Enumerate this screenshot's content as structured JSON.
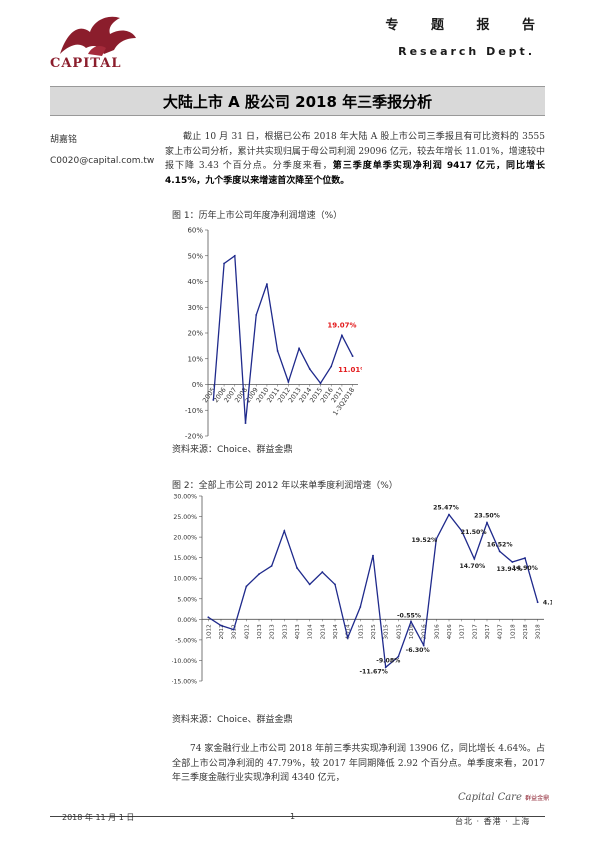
{
  "header": {
    "logo_text": "CAPITAL",
    "cn_label": "专 题 报 告",
    "en_label": "Research Dept."
  },
  "title": "大陆上市 A 股公司 2018 年三季报分析",
  "author": {
    "name": "胡嘉铭",
    "email": "C0020@capital.com.tw"
  },
  "intro": {
    "normal": "截止 10 月 31 日，根据已公布 2018 年大陆 A 股上市公司三季报且有可比资料的 3555 家上市公司分析，累计共实现归属于母公司利润 29096 亿元，较去年增长 11.01%，增速较中报下降 3.43 个百分点。分季度来看，",
    "bold": "第三季度单季实现净利润 9417 亿元，同比增长 4.15%，九个季度以来增速首次降至个位数。"
  },
  "figure1": {
    "title": "图 1：历年上市公司年度净利润增速（%）",
    "source": "资料来源：Choice、群益金鼎"
  },
  "figure2": {
    "title": "图 2：全部上市公司 2012 年以来单季度利润增速（%）",
    "source": "资料来源：Choice、群益金鼎"
  },
  "chart_data": [
    {
      "type": "line",
      "title": "",
      "xlabel": "",
      "ylabel": "",
      "categories": [
        "2005",
        "2006",
        "2007",
        "2008",
        "2009",
        "2010",
        "2011",
        "2012",
        "2013",
        "2014",
        "2015",
        "2016",
        "2017",
        "1-3Q2018"
      ],
      "values": [
        -6,
        47,
        50,
        -15,
        27,
        39,
        13,
        1,
        14,
        6,
        0.5,
        7,
        19.07,
        11.01
      ],
      "ylim": [
        -20,
        60
      ],
      "yticks": [
        "-20%",
        "-10%",
        "0%",
        "10%",
        "20%",
        "30%",
        "40%",
        "50%",
        "60%"
      ],
      "labels": [
        {
          "index": 12,
          "text": "19.07%"
        },
        {
          "index": 13,
          "text": "11.01%"
        }
      ],
      "line_color": "#1f2a8c",
      "label_color": "#e31a1c",
      "grid": false
    },
    {
      "type": "line",
      "title": "",
      "xlabel": "",
      "ylabel": "",
      "categories": [
        "1Q12",
        "2Q12",
        "3Q12",
        "4Q12",
        "1Q13",
        "2Q13",
        "3Q13",
        "4Q13",
        "1Q14",
        "2Q14",
        "3Q14",
        "4Q14",
        "1Q15",
        "2Q15",
        "3Q15",
        "4Q15",
        "1Q16",
        "2Q16",
        "3Q16",
        "4Q16",
        "1Q17",
        "2Q17",
        "3Q17",
        "4Q17",
        "1Q18",
        "2Q18",
        "3Q18"
      ],
      "tick_labels": [
        "1Q12",
        "2Q12",
        "3Q12",
        "4Q12",
        "1Q13",
        "2Q13",
        "3Q13",
        "4Q13",
        "1Q14",
        "2Q14",
        "3Q14",
        "4Q14",
        "1Q15",
        "2Q15",
        "3Q15",
        "4Q15",
        "1Q16",
        "2Q16",
        "3Q16",
        "4Q16",
        "1Q17",
        "2Q17",
        "3Q17",
        "4Q17",
        "1Q18",
        "2Q18",
        "3Q18"
      ],
      "values": [
        0.5,
        -1.5,
        -2.5,
        8,
        11,
        13,
        21.5,
        12.5,
        8.5,
        11.5,
        8.5,
        -4.5,
        3,
        15.5,
        -11.67,
        -9.08,
        -0.55,
        -6.3,
        19.52,
        25.47,
        21.5,
        14.7,
        23.5,
        16.52,
        13.94,
        14.9,
        4.15
      ],
      "ylim": [
        -15,
        30
      ],
      "yticks": [
        "-15.00%",
        "-10.00%",
        "-5.00%",
        "0.00%",
        "5.00%",
        "10.00%",
        "15.00%",
        "20.00%",
        "25.00%",
        "30.00%"
      ],
      "labels": [
        {
          "index": 14,
          "text": "-11.67%"
        },
        {
          "index": 15,
          "text": "-9.08%"
        },
        {
          "index": 16,
          "text": "-0.55%"
        },
        {
          "index": 17,
          "text": "-6.30%"
        },
        {
          "index": 18,
          "text": "19.52%"
        },
        {
          "index": 19,
          "text": "25.47%"
        },
        {
          "index": 20,
          "text": "21.50%"
        },
        {
          "index": 21,
          "text": "14.70%"
        },
        {
          "index": 22,
          "text": "23.50%"
        },
        {
          "index": 23,
          "text": "16.52%"
        },
        {
          "index": 24,
          "text": "13.94%"
        },
        {
          "index": 25,
          "text": "14.90%"
        },
        {
          "index": 26,
          "text": "4.15%"
        }
      ],
      "line_color": "#1f2a8c",
      "grid": false
    }
  ],
  "tail": {
    "text": "74 家金融行业上市公司 2018 年前三季共实现净利润 13906 亿，同比增长 4.64%。占全部上市公司净利润的 47.79%，较 2017 年同期降低 2.92 个百分点。单季度来看，2017 年三季度金融行业实现净利润 4340 亿元，"
  },
  "footer": {
    "date": "2018 年 11 月 1 日",
    "page": "1",
    "brand": "Capital Care",
    "brand_cn": "群益金鼎",
    "cities": "台北 · 香港 · 上海"
  },
  "colors": {
    "brand_red": "#8b1d2c",
    "series": "#1f2a8c",
    "highlight": "#e31a1c"
  }
}
